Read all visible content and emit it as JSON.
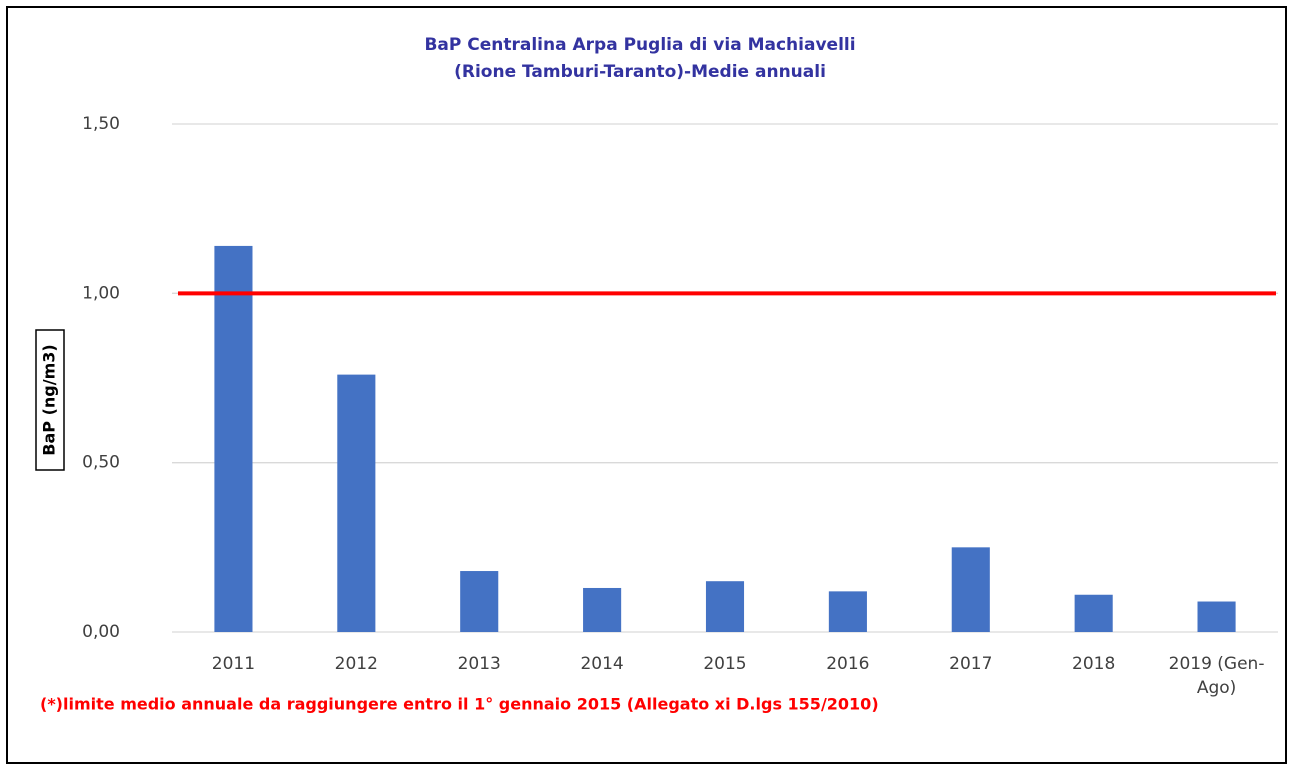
{
  "chart_data": {
    "type": "bar",
    "title": [
      "BaP Centralina Arpa Puglia di via Machiavelli",
      "(Rione Tamburi-Taranto)-Medie annuali"
    ],
    "y_label": "BaP (ng/m3)",
    "categories": [
      "2011",
      "2012",
      "2013",
      "2014",
      "2015",
      "2016",
      "2017",
      "2018",
      "2019 (Gen-Ago)"
    ],
    "values": [
      1.14,
      0.76,
      0.18,
      0.13,
      0.15,
      0.12,
      0.25,
      0.11,
      0.09
    ],
    "color": "#4472c4",
    "ylim": [
      0,
      1.5
    ],
    "yticks": [
      {
        "value": 0,
        "label": "0,00"
      },
      {
        "value": 0.5,
        "label": "0,50"
      },
      {
        "value": 1,
        "label": "1,00"
      },
      {
        "value": 1.5,
        "label": "1,50"
      }
    ],
    "grid": true,
    "reference_line": {
      "value": 1,
      "color": "#ff0000"
    },
    "annotation": "(*)limite medio annuale da raggiungere entro il 1° gennaio 2015 (Allegato xi D.lgs 155/2010)"
  }
}
